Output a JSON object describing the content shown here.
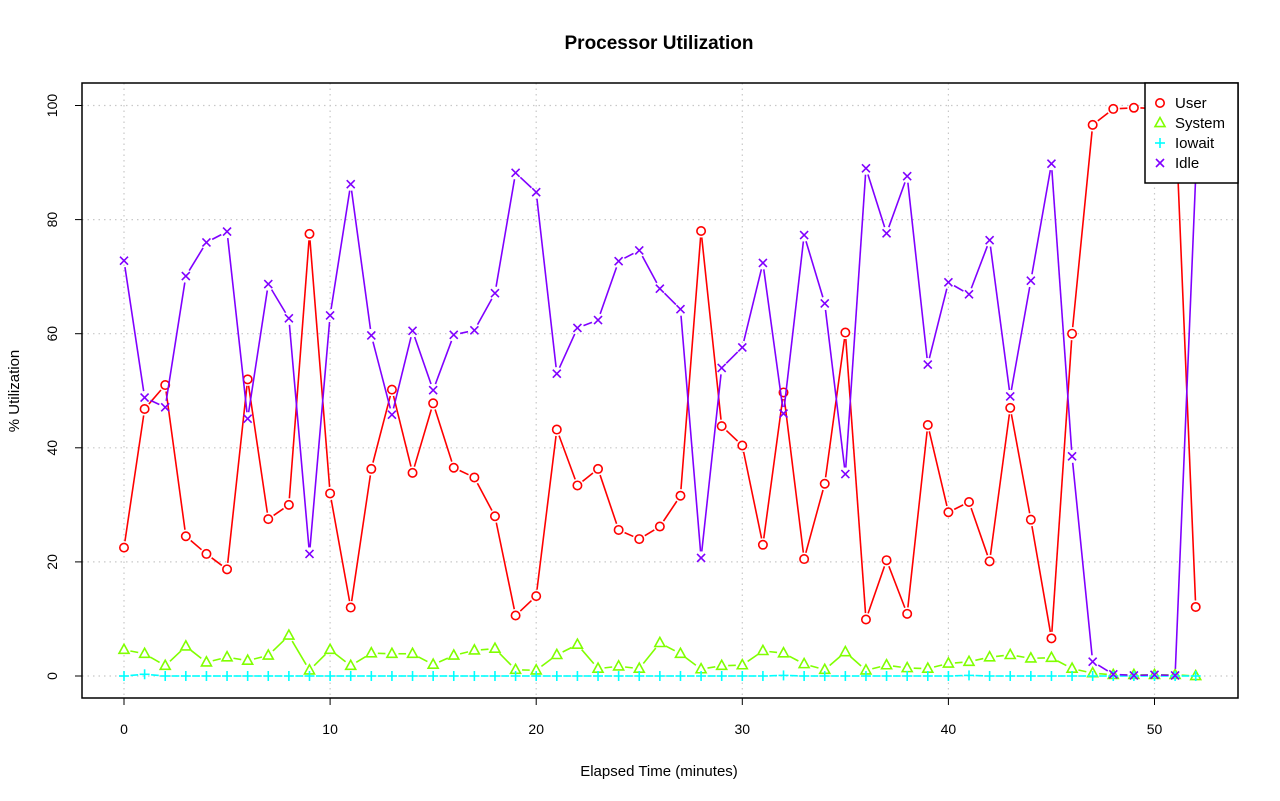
{
  "chart_data": {
    "type": "line",
    "title": "Processor Utilization",
    "xlabel": "Elapsed Time (minutes)",
    "ylabel": "% Utilization",
    "xlim": [
      0,
      52
    ],
    "ylim": [
      0,
      100
    ],
    "xticks": [
      0,
      10,
      20,
      30,
      40,
      50
    ],
    "yticks": [
      0,
      20,
      40,
      60,
      80,
      100
    ],
    "grid": true,
    "legend_position": "top-right",
    "x": [
      0,
      1,
      2,
      3,
      4,
      5,
      6,
      7,
      8,
      9,
      10,
      11,
      12,
      13,
      14,
      15,
      16,
      17,
      18,
      19,
      20,
      21,
      22,
      23,
      24,
      25,
      26,
      27,
      28,
      29,
      30,
      31,
      32,
      33,
      34,
      35,
      36,
      37,
      38,
      39,
      40,
      41,
      42,
      43,
      44,
      45,
      46,
      47,
      48,
      49,
      50,
      51,
      52
    ],
    "series": [
      {
        "name": "User",
        "color": "#ff0000",
        "marker": "circle",
        "values": [
          22.5,
          46.8,
          51,
          24.5,
          21.4,
          18.7,
          52,
          27.5,
          30,
          77.5,
          32,
          12,
          36.3,
          50.2,
          35.6,
          47.8,
          36.5,
          34.8,
          28,
          10.6,
          14,
          43.2,
          33.4,
          36.3,
          25.6,
          24,
          26.2,
          31.6,
          78,
          43.8,
          40.4,
          23,
          49.7,
          20.5,
          33.7,
          60.2,
          9.9,
          20.3,
          10.9,
          44,
          28.7,
          30.5,
          20.1,
          47,
          27.4,
          6.6,
          60,
          96.6,
          99.4,
          99.6,
          99.5,
          99.5,
          12.1
        ]
      },
      {
        "name": "System",
        "color": "#80ff00",
        "marker": "triangle",
        "values": [
          4.6,
          3.9,
          1.8,
          5.2,
          2.4,
          3.3,
          2.7,
          3.6,
          7.1,
          1,
          4.6,
          1.8,
          4,
          3.9,
          3.9,
          2,
          3.6,
          4.5,
          4.8,
          1.1,
          1,
          3.7,
          5.5,
          1.3,
          1.7,
          1.3,
          5.8,
          3.9,
          1.2,
          1.8,
          1.9,
          4.4,
          4,
          2.1,
          1.1,
          4.2,
          1,
          1.9,
          1.4,
          1.3,
          2.2,
          2.5,
          3.3,
          3.7,
          3.1,
          3.2,
          1.3,
          0.5,
          0.2,
          0.2,
          0.2,
          0.2,
          0
        ]
      },
      {
        "name": "Iowait",
        "color": "#00ffff",
        "marker": "plus",
        "values": [
          0,
          0.3,
          0,
          0,
          0,
          0,
          0,
          0,
          0,
          0,
          0,
          0,
          0,
          0,
          0,
          0,
          0,
          0,
          0,
          0,
          0,
          0,
          0,
          0,
          0,
          0,
          0,
          0,
          0,
          0,
          0,
          0,
          0.1,
          0,
          0,
          0,
          0,
          0,
          0,
          0,
          0,
          0.1,
          0,
          0,
          0,
          0,
          0,
          0,
          0,
          0,
          0,
          0,
          0
        ]
      },
      {
        "name": "Idle",
        "color": "#8000ff",
        "marker": "cross",
        "values": [
          72.8,
          48.8,
          47.1,
          70.1,
          76,
          77.9,
          45.1,
          68.7,
          62.7,
          21.4,
          63.2,
          86.2,
          59.7,
          45.8,
          60.5,
          50.1,
          59.8,
          60.6,
          67.1,
          88.2,
          84.8,
          53,
          61,
          62.4,
          72.7,
          74.6,
          67.9,
          64.3,
          20.7,
          54,
          57.6,
          72.4,
          46,
          77.3,
          65.3,
          35.4,
          89,
          77.6,
          87.6,
          54.6,
          69,
          66.9,
          76.4,
          49,
          69.3,
          89.8,
          38.5,
          2.5,
          0.3,
          0.1,
          0.2,
          0.1,
          87.7
        ]
      }
    ]
  }
}
